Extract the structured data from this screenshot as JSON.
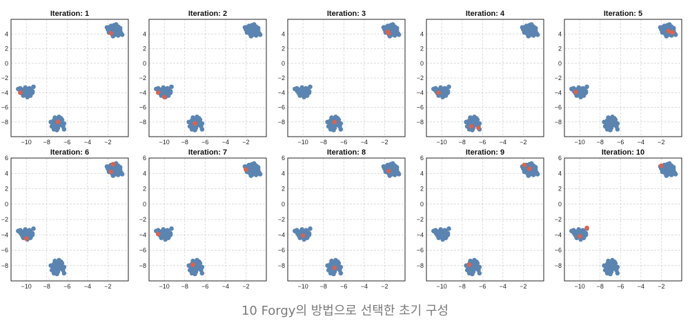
{
  "caption": "10 Forgy의 방법으로 선택한 초기 구성",
  "colors": {
    "points": "#5b84b1",
    "centroids": "#d9634f",
    "grid": "#cfcfcf",
    "frame": "#222222"
  },
  "chart_data": {
    "type": "scatter",
    "grid": true,
    "xlim": [
      -11.5,
      0
    ],
    "xticks": [
      -10,
      -8,
      -6,
      -4,
      -2
    ],
    "ylim": [
      -10,
      6
    ],
    "yticks_row1": [
      -8,
      -6,
      -4,
      -2,
      0,
      2,
      4
    ],
    "yticks_row2": [
      -8,
      -6,
      -4,
      -2,
      0,
      2,
      4,
      6
    ],
    "clusters": [
      {
        "points": [
          [
            -10.8,
            -3.5
          ],
          [
            -10.6,
            -3.7
          ],
          [
            -10.5,
            -3.9
          ],
          [
            -10.4,
            -4.1
          ],
          [
            -10.3,
            -3.6
          ],
          [
            -10.2,
            -3.8
          ],
          [
            -10.1,
            -4.2
          ],
          [
            -10.0,
            -3.5
          ],
          [
            -10.3,
            -4.4
          ],
          [
            -10.0,
            -4.0
          ],
          [
            -9.9,
            -3.7
          ],
          [
            -9.8,
            -4.3
          ],
          [
            -9.7,
            -3.9
          ],
          [
            -9.6,
            -3.6
          ],
          [
            -9.5,
            -4.1
          ],
          [
            -9.4,
            -3.8
          ],
          [
            -9.3,
            -3.2
          ],
          [
            -9.9,
            -4.6
          ],
          [
            -10.6,
            -3.4
          ],
          [
            -10.1,
            -3.3
          ],
          [
            -9.6,
            -4.4
          ],
          [
            -9.4,
            -4.0
          ],
          [
            -10.4,
            -3.9
          ],
          [
            -9.7,
            -3.4
          ]
        ]
      },
      {
        "points": [
          [
            -7.6,
            -8.0
          ],
          [
            -7.4,
            -8.2
          ],
          [
            -7.3,
            -7.8
          ],
          [
            -7.2,
            -8.5
          ],
          [
            -7.1,
            -8.0
          ],
          [
            -7.0,
            -7.6
          ],
          [
            -7.0,
            -8.3
          ],
          [
            -6.9,
            -8.8
          ],
          [
            -6.8,
            -7.9
          ],
          [
            -6.8,
            -7.3
          ],
          [
            -6.7,
            -8.4
          ],
          [
            -6.6,
            -8.1
          ],
          [
            -6.5,
            -7.7
          ],
          [
            -6.4,
            -8.6
          ],
          [
            -6.3,
            -8.2
          ],
          [
            -6.3,
            -9.0
          ],
          [
            -7.3,
            -9.0
          ],
          [
            -7.2,
            -7.4
          ],
          [
            -6.9,
            -7.8
          ],
          [
            -7.5,
            -8.6
          ],
          [
            -6.6,
            -7.5
          ],
          [
            -7.0,
            -9.1
          ]
        ]
      },
      {
        "points": [
          [
            -2.0,
            4.6
          ],
          [
            -1.9,
            4.9
          ],
          [
            -1.8,
            4.3
          ],
          [
            -1.7,
            5.1
          ],
          [
            -1.7,
            4.6
          ],
          [
            -1.6,
            4.0
          ],
          [
            -1.5,
            4.8
          ],
          [
            -1.4,
            5.2
          ],
          [
            -1.4,
            4.4
          ],
          [
            -1.3,
            4.9
          ],
          [
            -1.2,
            4.1
          ],
          [
            -1.1,
            4.6
          ],
          [
            -1.0,
            5.0
          ],
          [
            -1.0,
            3.8
          ],
          [
            -0.9,
            4.3
          ],
          [
            -0.8,
            4.8
          ],
          [
            -0.7,
            4.1
          ],
          [
            -0.6,
            3.9
          ],
          [
            -1.9,
            4.2
          ],
          [
            -1.5,
            3.7
          ],
          [
            -1.2,
            5.3
          ],
          [
            -0.8,
            4.5
          ],
          [
            -1.6,
            5.0
          ],
          [
            -1.3,
            3.9
          ],
          [
            -2.1,
            4.9
          ],
          [
            -1.1,
            4.4
          ]
        ]
      }
    ],
    "iterations": [
      {
        "title": "Iteration: 1",
        "centroids": [
          [
            -1.7,
            4.1
          ],
          [
            -10.6,
            -4.0
          ],
          [
            -6.9,
            -8.0
          ]
        ]
      },
      {
        "title": "Iteration: 2",
        "centroids": [
          [
            -10.6,
            -4.0
          ],
          [
            -10.0,
            -4.6
          ],
          [
            -7.0,
            -8.2
          ]
        ]
      },
      {
        "title": "Iteration: 3",
        "centroids": [
          [
            -1.7,
            4.3
          ],
          [
            -1.6,
            4.1
          ],
          [
            -6.9,
            -8.0
          ]
        ]
      },
      {
        "title": "Iteration: 4",
        "centroids": [
          [
            -10.3,
            -4.0
          ],
          [
            -7.1,
            -8.6
          ],
          [
            -6.4,
            -8.8
          ]
        ]
      },
      {
        "title": "Iteration: 5",
        "centroids": [
          [
            -1.3,
            4.4
          ],
          [
            -0.9,
            4.2
          ],
          [
            -10.4,
            -3.9
          ]
        ]
      },
      {
        "title": "Iteration: 6",
        "centroids": [
          [
            -1.5,
            5.2
          ],
          [
            -1.7,
            4.2
          ],
          [
            -10.0,
            -4.5
          ]
        ]
      },
      {
        "title": "Iteration: 7",
        "centroids": [
          [
            -2.0,
            4.5
          ],
          [
            -10.6,
            -3.9
          ],
          [
            -7.2,
            -7.9
          ]
        ]
      },
      {
        "title": "Iteration: 8",
        "centroids": [
          [
            -1.6,
            4.3
          ],
          [
            -10.0,
            -4.1
          ],
          [
            -6.9,
            -8.3
          ]
        ]
      },
      {
        "title": "Iteration: 9",
        "centroids": [
          [
            -1.9,
            5.1
          ],
          [
            -1.4,
            4.6
          ],
          [
            -7.3,
            -7.9
          ]
        ]
      },
      {
        "title": "Iteration: 10",
        "centroids": [
          [
            -2.0,
            5.0
          ],
          [
            -9.3,
            -3.1
          ],
          [
            -10.0,
            -4.2
          ]
        ]
      }
    ]
  }
}
